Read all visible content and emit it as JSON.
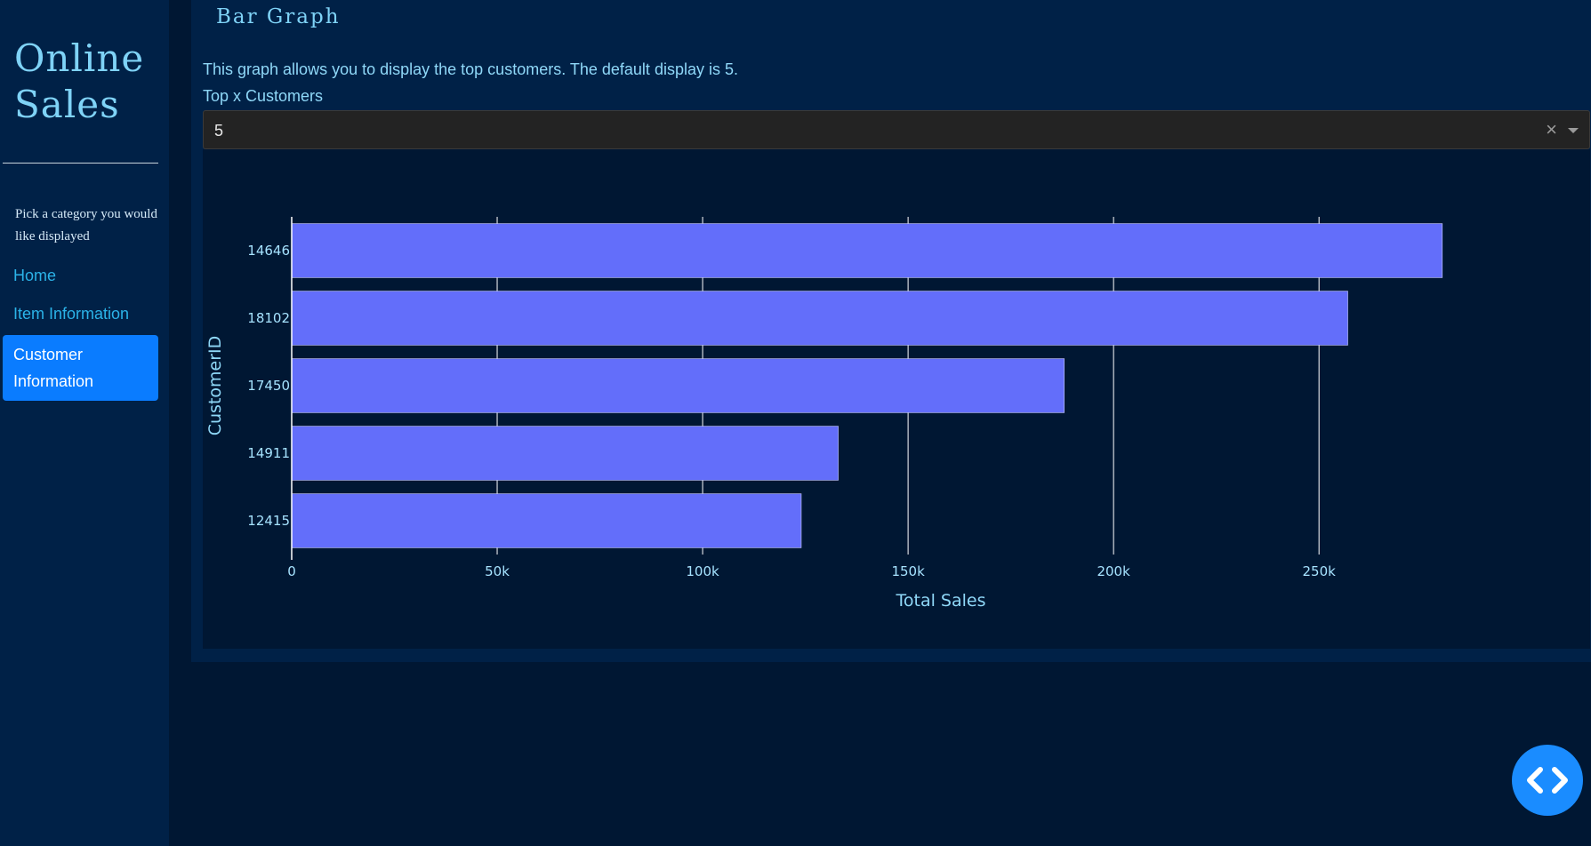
{
  "sidebar": {
    "title": "Online\nSales",
    "hint": "Pick a category you would like displayed",
    "nav": [
      {
        "label": "Home",
        "active": false
      },
      {
        "label": "Item Information",
        "active": false
      },
      {
        "label": "Customer Information",
        "active": true
      }
    ]
  },
  "main": {
    "title": "Bar Graph",
    "description": "This graph allows you to display the top customers. The default display is 5.",
    "dropdown": {
      "label": "Top x Customers",
      "value": "5"
    }
  },
  "colors": {
    "bar": "#636efa",
    "tick_text": "#a6e3ff",
    "axis_title": "#8fd8f8",
    "grid": "#ffffff"
  },
  "chart_data": {
    "type": "bar",
    "orientation": "horizontal",
    "categories": [
      "14646",
      "18102",
      "17450",
      "14911",
      "12415"
    ],
    "values": [
      280000,
      257000,
      188000,
      133000,
      124000
    ],
    "xlabel": "Total Sales",
    "ylabel": "CustomerID",
    "xlim": [
      0,
      290000
    ],
    "xticks": [
      0,
      50000,
      100000,
      150000,
      200000,
      250000
    ],
    "xtick_labels": [
      "0",
      "50k",
      "100k",
      "150k",
      "200k",
      "250k"
    ],
    "grid": true
  },
  "fab": {
    "icon": "code-icon"
  }
}
